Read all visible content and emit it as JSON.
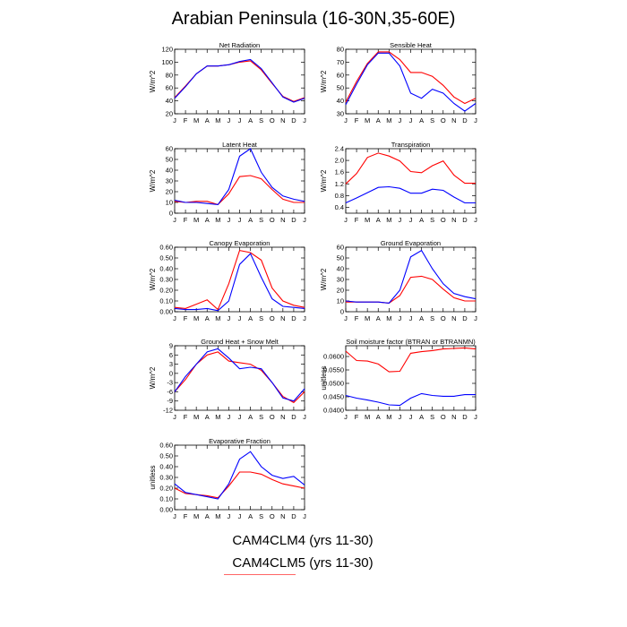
{
  "title": "Arabian Peninsula (16-30N,35-60E)",
  "legend": [
    {
      "label": "CAM4CLM4 (yrs 11-30)",
      "color": "#0000ff"
    },
    {
      "label": "CAM4CLM5 (yrs 11-30)",
      "color": "#ff0000"
    }
  ],
  "chart_data": [
    {
      "type": "line",
      "title": "Net Radiation",
      "ylabel": "W/m^2",
      "categories": [
        "J",
        "F",
        "M",
        "A",
        "M",
        "J",
        "J",
        "A",
        "S",
        "O",
        "N",
        "D",
        "J"
      ],
      "ylim": [
        20,
        120
      ],
      "yticks": [
        "20",
        "40",
        "60",
        "80",
        "100",
        "120"
      ],
      "series": [
        {
          "values": [
            44,
            62,
            82,
            94,
            94,
            96,
            101,
            104,
            90,
            68,
            46,
            38,
            44
          ]
        },
        {
          "values": [
            45,
            63,
            82,
            94,
            94,
            96,
            100,
            102,
            88,
            67,
            47,
            39,
            45
          ]
        }
      ]
    },
    {
      "type": "line",
      "title": "Sensible Heat",
      "ylabel": "W/m^2",
      "categories": [
        "J",
        "F",
        "M",
        "A",
        "M",
        "J",
        "J",
        "A",
        "S",
        "O",
        "N",
        "D",
        "J"
      ],
      "ylim": [
        30,
        80
      ],
      "yticks": [
        "30",
        "40",
        "50",
        "60",
        "70",
        "80"
      ],
      "series": [
        {
          "values": [
            37,
            53,
            68,
            77,
            77,
            67,
            46,
            42,
            49,
            46,
            38,
            32,
            38
          ]
        },
        {
          "values": [
            39,
            55,
            69,
            78,
            78,
            72,
            62,
            62,
            59,
            52,
            43,
            38,
            42
          ]
        }
      ]
    },
    {
      "type": "line",
      "title": "Latent Heat",
      "ylabel": "W/m^2",
      "categories": [
        "J",
        "F",
        "M",
        "A",
        "M",
        "J",
        "J",
        "A",
        "S",
        "O",
        "N",
        "D",
        "J"
      ],
      "ylim": [
        0,
        60
      ],
      "yticks": [
        "0",
        "10",
        "20",
        "30",
        "40",
        "50",
        "60"
      ],
      "series": [
        {
          "values": [
            12,
            10,
            10,
            9,
            8,
            22,
            53,
            60,
            38,
            24,
            16,
            13,
            11
          ]
        },
        {
          "values": [
            11,
            10,
            11,
            11,
            8,
            18,
            34,
            35,
            32,
            22,
            13,
            10,
            10
          ]
        }
      ]
    },
    {
      "type": "line",
      "title": "Transpiration",
      "ylabel": "W/m^2",
      "categories": [
        "J",
        "F",
        "M",
        "A",
        "M",
        "J",
        "J",
        "A",
        "S",
        "O",
        "N",
        "D",
        "J"
      ],
      "ylim": [
        0.2,
        2.4
      ],
      "yticks": [
        "0.4",
        "0.8",
        "1.2",
        "1.6",
        "2.0",
        "2.4"
      ],
      "series": [
        {
          "values": [
            0.55,
            0.72,
            0.9,
            1.08,
            1.1,
            1.05,
            0.88,
            0.88,
            1.02,
            0.98,
            0.75,
            0.55,
            0.55
          ]
        },
        {
          "values": [
            1.2,
            1.55,
            2.1,
            2.25,
            2.15,
            1.98,
            1.62,
            1.58,
            1.82,
            1.98,
            1.5,
            1.22,
            1.22
          ]
        }
      ]
    },
    {
      "type": "line",
      "title": "Canopy Evaporation",
      "ylabel": "W/m^2",
      "categories": [
        "J",
        "F",
        "M",
        "A",
        "M",
        "J",
        "J",
        "A",
        "S",
        "O",
        "N",
        "D",
        "J"
      ],
      "ylim": [
        0,
        0.6
      ],
      "yticks": [
        "0.00",
        "0.10",
        "0.20",
        "0.30",
        "0.40",
        "0.50",
        "0.60"
      ],
      "series": [
        {
          "values": [
            0.03,
            0.02,
            0.02,
            0.03,
            0.01,
            0.1,
            0.44,
            0.54,
            0.32,
            0.12,
            0.05,
            0.04,
            0.03
          ]
        },
        {
          "values": [
            0.04,
            0.03,
            0.07,
            0.11,
            0.02,
            0.26,
            0.57,
            0.55,
            0.48,
            0.22,
            0.1,
            0.06,
            0.04
          ]
        }
      ]
    },
    {
      "type": "line",
      "title": "Ground Evaporation",
      "ylabel": "W/m^2",
      "categories": [
        "J",
        "F",
        "M",
        "A",
        "M",
        "J",
        "J",
        "A",
        "S",
        "O",
        "N",
        "D",
        "J"
      ],
      "ylim": [
        0,
        60
      ],
      "yticks": [
        "0",
        "10",
        "20",
        "30",
        "40",
        "50",
        "60"
      ],
      "series": [
        {
          "values": [
            10,
            9,
            9,
            9,
            8,
            20,
            51,
            57,
            40,
            26,
            17,
            14,
            12
          ]
        },
        {
          "values": [
            9,
            9,
            9,
            9,
            8,
            15,
            32,
            33,
            30,
            21,
            13,
            10,
            10
          ]
        }
      ]
    },
    {
      "type": "line",
      "title": "Ground Heat + Snow Melt",
      "ylabel": "W/m^2",
      "categories": [
        "J",
        "F",
        "M",
        "A",
        "M",
        "J",
        "J",
        "A",
        "S",
        "O",
        "N",
        "D",
        "J"
      ],
      "ylim": [
        -12,
        9
      ],
      "yticks": [
        "-12",
        "-9",
        "-6",
        "-3",
        "0",
        "3",
        "6",
        "9"
      ],
      "series": [
        {
          "values": [
            -6,
            -1,
            3,
            7,
            8,
            5,
            1.5,
            2,
            1.5,
            -3,
            -8,
            -9,
            -5
          ]
        },
        {
          "values": [
            -6,
            -2,
            3,
            6,
            7,
            4,
            3.5,
            3,
            1,
            -3,
            -7.5,
            -9.5,
            -6
          ]
        }
      ]
    },
    {
      "type": "line",
      "title": "Soil moisture factor (BTRAN or BTRANMN)",
      "ylabel": "unitless",
      "categories": [
        "J",
        "F",
        "M",
        "A",
        "M",
        "J",
        "J",
        "A",
        "S",
        "O",
        "N",
        "D",
        "J"
      ],
      "ylim": [
        0.04,
        0.064
      ],
      "yticks": [
        "0.0400",
        "0.0450",
        "0.0500",
        "0.0550",
        "0.0600"
      ],
      "series": [
        {
          "values": [
            0.0455,
            0.0445,
            0.0438,
            0.043,
            0.042,
            0.0418,
            0.0445,
            0.0462,
            0.0455,
            0.0452,
            0.0452,
            0.0458,
            0.0458
          ]
        },
        {
          "values": [
            0.062,
            0.0585,
            0.0583,
            0.0572,
            0.0543,
            0.0545,
            0.0612,
            0.0618,
            0.0622,
            0.0628,
            0.063,
            0.0632,
            0.0628
          ]
        }
      ]
    },
    {
      "type": "line",
      "title": "Evaporative Fraction",
      "ylabel": "unitless",
      "categories": [
        "J",
        "F",
        "M",
        "A",
        "M",
        "J",
        "J",
        "A",
        "S",
        "O",
        "N",
        "D",
        "J"
      ],
      "ylim": [
        0,
        0.6
      ],
      "yticks": [
        "0.00",
        "0.10",
        "0.20",
        "0.30",
        "0.40",
        "0.50",
        "0.60"
      ],
      "series": [
        {
          "values": [
            0.24,
            0.16,
            0.14,
            0.12,
            0.1,
            0.24,
            0.47,
            0.54,
            0.4,
            0.32,
            0.29,
            0.31,
            0.23
          ]
        },
        {
          "values": [
            0.2,
            0.15,
            0.14,
            0.13,
            0.11,
            0.22,
            0.35,
            0.35,
            0.33,
            0.28,
            0.24,
            0.22,
            0.2
          ]
        }
      ]
    }
  ]
}
